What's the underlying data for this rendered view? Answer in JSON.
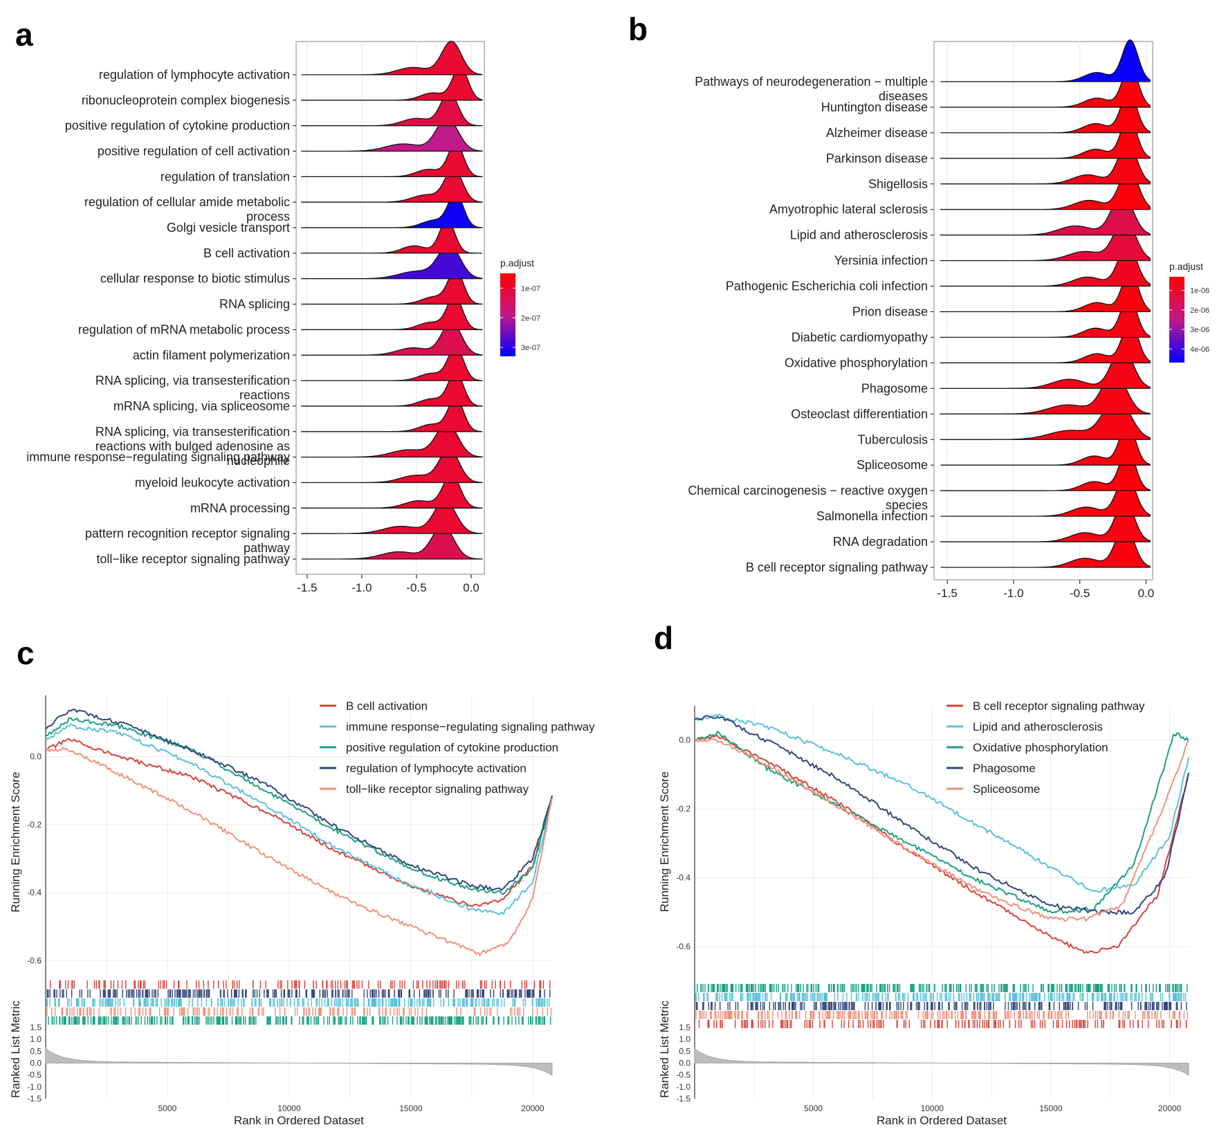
{
  "chart_data": [
    {
      "panel": "a",
      "type": "ridgeline",
      "xlim": [
        -1.6,
        0.12
      ],
      "x_ticks": [
        -1.5,
        -1.0,
        -0.5,
        0.0
      ],
      "x_tick_labels": [
        "-1.5",
        "-1.0",
        "-0.5",
        "0.0"
      ],
      "legend": {
        "title": "p.adjust",
        "labels": [
          "1e-07",
          "2e-07",
          "3e-07"
        ],
        "placement": "right",
        "scale_min": 5e-08,
        "scale_max": 3.3e-07
      },
      "categories": [
        "regulation of lymphocyte activation",
        "ribonucleoprotein complex biogenesis",
        "positive regulation of cytokine production",
        "positive regulation of cell activation",
        "regulation of translation",
        "regulation of cellular amide metabolic process",
        "Golgi vesicle transport",
        "B cell activation",
        "cellular response to biotic stimulus",
        "RNA splicing",
        "regulation of mRNA metabolic process",
        "actin filament polymerization",
        "RNA splicing, via transesterification reactions",
        "mRNA splicing, via spliceosome",
        "RNA splicing, via transesterification reactions with bulged adenosine as nucleophile",
        "immune response-regulating signaling pathway",
        "myeloid leukocyte activation",
        "mRNA processing",
        "pattern recognition receptor signaling pathway",
        "toll-like receptor signaling pathway"
      ],
      "label_lines": [
        [
          "regulation of lymphocyte activation"
        ],
        [
          "ribonucleoprotein complex biogenesis"
        ],
        [
          "positive regulation of cytokine production"
        ],
        [
          "positive regulation of cell activation"
        ],
        [
          "regulation of translation"
        ],
        [
          "regulation of cellular amide metabolic",
          "process"
        ],
        [
          "Golgi vesicle transport"
        ],
        [
          "B cell activation"
        ],
        [
          "cellular response to biotic stimulus"
        ],
        [
          "RNA splicing"
        ],
        [
          "regulation of mRNA metabolic process"
        ],
        [
          "actin filament polymerization"
        ],
        [
          "RNA splicing, via transesterification",
          "reactions"
        ],
        [
          "mRNA splicing, via spliceosome"
        ],
        [
          "RNA splicing, via transesterification",
          "reactions with bulged adenosine as",
          "nucleophile"
        ],
        [
          "immune response−regulating signaling pathway"
        ],
        [
          "myeloid leukocyte activation"
        ],
        [
          "mRNA processing"
        ],
        [
          "pattern recognition receptor signaling",
          "pathway"
        ],
        [
          "toll−like receptor signaling pathway"
        ]
      ],
      "peaks": [
        {
          "center": -0.18,
          "width": 0.09,
          "tail": 0.35,
          "p_adjust": 1e-07
        },
        {
          "center": -0.1,
          "width": 0.07,
          "tail": 0.25,
          "p_adjust": 1e-07
        },
        {
          "center": -0.2,
          "width": 0.08,
          "tail": 0.3,
          "p_adjust": 1.2e-07
        },
        {
          "center": -0.22,
          "width": 0.1,
          "tail": 0.4,
          "p_adjust": 1.9e-07
        },
        {
          "center": -0.14,
          "width": 0.07,
          "tail": 0.25,
          "p_adjust": 1e-07
        },
        {
          "center": -0.16,
          "width": 0.08,
          "tail": 0.25,
          "p_adjust": 1e-07
        },
        {
          "center": -0.14,
          "width": 0.07,
          "tail": 0.2,
          "p_adjust": 3.2e-07
        },
        {
          "center": -0.22,
          "width": 0.07,
          "tail": 0.3,
          "p_adjust": 1e-07
        },
        {
          "center": -0.2,
          "width": 0.1,
          "tail": 0.3,
          "p_adjust": 2.8e-07
        },
        {
          "center": -0.14,
          "width": 0.07,
          "tail": 0.2,
          "p_adjust": 1e-07
        },
        {
          "center": -0.15,
          "width": 0.07,
          "tail": 0.22,
          "p_adjust": 1e-07
        },
        {
          "center": -0.18,
          "width": 0.09,
          "tail": 0.35,
          "p_adjust": 1.3e-07
        },
        {
          "center": -0.14,
          "width": 0.07,
          "tail": 0.22,
          "p_adjust": 1e-07
        },
        {
          "center": -0.14,
          "width": 0.07,
          "tail": 0.22,
          "p_adjust": 1e-07
        },
        {
          "center": -0.14,
          "width": 0.07,
          "tail": 0.22,
          "p_adjust": 1e-07
        },
        {
          "center": -0.22,
          "width": 0.1,
          "tail": 0.35,
          "p_adjust": 1e-07
        },
        {
          "center": -0.2,
          "width": 0.09,
          "tail": 0.3,
          "p_adjust": 1e-07
        },
        {
          "center": -0.18,
          "width": 0.08,
          "tail": 0.3,
          "p_adjust": 1e-07
        },
        {
          "center": -0.24,
          "width": 0.1,
          "tail": 0.4,
          "p_adjust": 1e-07
        },
        {
          "center": -0.26,
          "width": 0.1,
          "tail": 0.4,
          "p_adjust": 1.3e-07
        }
      ]
    },
    {
      "panel": "b",
      "type": "ridgeline",
      "xlim": [
        -1.6,
        0.05
      ],
      "x_ticks": [
        -1.5,
        -1.0,
        -0.5,
        0.0
      ],
      "x_tick_labels": [
        "-1.5",
        "-1.0",
        "-0.5",
        "0.0"
      ],
      "legend": {
        "title": "p.adjust",
        "labels": [
          "1e-06",
          "2e-06",
          "3e-06",
          "4e-06"
        ],
        "placement": "right",
        "scale_min": 3e-07,
        "scale_max": 4.7e-06
      },
      "categories": [
        "Pathways of neurodegeneration - multiple diseases",
        "Huntington disease",
        "Alzheimer disease",
        "Parkinson disease",
        "Shigellosis",
        "Amyotrophic lateral sclerosis",
        "Lipid and atherosclerosis",
        "Yersinia infection",
        "Pathogenic Escherichia coli infection",
        "Prion disease",
        "Diabetic cardiomyopathy",
        "Oxidative phosphorylation",
        "Phagosome",
        "Osteoclast differentiation",
        "Tuberculosis",
        "Spliceosome",
        "Chemical carcinogenesis - reactive oxygen species",
        "Salmonella infection",
        "RNA degradation",
        "B cell receptor signaling pathway"
      ],
      "label_lines": [
        [
          "Pathways of neurodegeneration − multiple",
          "diseases"
        ],
        [
          "Huntington disease"
        ],
        [
          "Alzheimer disease"
        ],
        [
          "Parkinson disease"
        ],
        [
          "Shigellosis"
        ],
        [
          "Amyotrophic lateral sclerosis"
        ],
        [
          "Lipid and atherosclerosis"
        ],
        [
          "Yersinia infection"
        ],
        [
          "Pathogenic Escherichia coli infection"
        ],
        [
          "Prion disease"
        ],
        [
          "Diabetic cardiomyopathy"
        ],
        [
          "Oxidative phosphorylation"
        ],
        [
          "Phagosome"
        ],
        [
          "Osteoclast differentiation"
        ],
        [
          "Tuberculosis"
        ],
        [
          "Spliceosome"
        ],
        [
          "Chemical carcinogenesis − reactive oxygen",
          "species"
        ],
        [
          "Salmonella infection"
        ],
        [
          "RNA degradation"
        ],
        [
          "B cell receptor signaling pathway"
        ]
      ],
      "peaks": [
        {
          "center": -0.12,
          "width": 0.06,
          "tail": 0.25,
          "p_adjust": 4.6e-06
        },
        {
          "center": -0.12,
          "width": 0.06,
          "tail": 0.25,
          "p_adjust": 5e-07
        },
        {
          "center": -0.13,
          "width": 0.06,
          "tail": 0.25,
          "p_adjust": 5e-07
        },
        {
          "center": -0.13,
          "width": 0.06,
          "tail": 0.25,
          "p_adjust": 5e-07
        },
        {
          "center": -0.14,
          "width": 0.07,
          "tail": 0.3,
          "p_adjust": 6e-07
        },
        {
          "center": -0.13,
          "width": 0.07,
          "tail": 0.3,
          "p_adjust": 5e-07
        },
        {
          "center": -0.18,
          "width": 0.08,
          "tail": 0.35,
          "p_adjust": 1.5e-06
        },
        {
          "center": -0.16,
          "width": 0.08,
          "tail": 0.3,
          "p_adjust": 1.2e-06
        },
        {
          "center": -0.14,
          "width": 0.07,
          "tail": 0.3,
          "p_adjust": 8e-07
        },
        {
          "center": -0.12,
          "width": 0.06,
          "tail": 0.25,
          "p_adjust": 5e-07
        },
        {
          "center": -0.13,
          "width": 0.06,
          "tail": 0.25,
          "p_adjust": 6e-07
        },
        {
          "center": -0.12,
          "width": 0.06,
          "tail": 0.25,
          "p_adjust": 6e-07
        },
        {
          "center": -0.18,
          "width": 0.08,
          "tail": 0.4,
          "p_adjust": 6e-07
        },
        {
          "center": -0.24,
          "width": 0.09,
          "tail": 0.35,
          "p_adjust": 6e-07
        },
        {
          "center": -0.22,
          "width": 0.1,
          "tail": 0.35,
          "p_adjust": 6e-07
        },
        {
          "center": -0.14,
          "width": 0.06,
          "tail": 0.25,
          "p_adjust": 5e-07
        },
        {
          "center": -0.14,
          "width": 0.06,
          "tail": 0.25,
          "p_adjust": 5e-07
        },
        {
          "center": -0.15,
          "width": 0.07,
          "tail": 0.3,
          "p_adjust": 5e-07
        },
        {
          "center": -0.16,
          "width": 0.07,
          "tail": 0.3,
          "p_adjust": 6e-07
        },
        {
          "center": -0.16,
          "width": 0.07,
          "tail": 0.3,
          "p_adjust": 5e-07
        }
      ]
    },
    {
      "panel": "c",
      "type": "line",
      "ylabel": "Running Enrichment Score",
      "xlabel": "Rank in Ordered Dataset",
      "ylim": [
        -0.65,
        0.18
      ],
      "y_ticks": [
        0.0,
        -0.2,
        -0.4,
        -0.6
      ],
      "y_tick_labels": [
        "0.0",
        "-0.2",
        "-0.4",
        "-0.6"
      ],
      "xlim": [
        0,
        20800
      ],
      "x_ticks": [
        5000,
        10000,
        15000,
        20000
      ],
      "x_tick_labels": [
        "5000",
        "10000",
        "15000",
        "20000"
      ],
      "metric_ylabel": "Ranked List Metric",
      "metric_ticks": [
        1.5,
        1.0,
        0.5,
        0.0,
        -0.5,
        -1.0,
        -1.5
      ],
      "metric_tick_labels": [
        "1.5",
        "1.0",
        "0.5",
        "0.0",
        "-0.5",
        "-1.0",
        "-1.5"
      ],
      "legend_placement": "top-right",
      "series": [
        {
          "name": "B cell activation",
          "color": "#d7433b",
          "x": [
            0,
            1000,
            3000,
            6000,
            9000,
            12000,
            15000,
            17500,
            18800,
            20000,
            20800
          ],
          "y": [
            0.02,
            0.05,
            0.0,
            -0.06,
            -0.16,
            -0.28,
            -0.38,
            -0.44,
            -0.42,
            -0.32,
            -0.12
          ]
        },
        {
          "name": "immune response−regulating signaling pathway",
          "color": "#5bc0d9",
          "x": [
            0,
            1000,
            3000,
            6000,
            9000,
            12000,
            15000,
            17500,
            18800,
            20000,
            20800
          ],
          "y": [
            0.05,
            0.09,
            0.07,
            -0.02,
            -0.14,
            -0.27,
            -0.38,
            -0.45,
            -0.46,
            -0.37,
            -0.12
          ]
        },
        {
          "name": "positive regulation of cytokine production",
          "color": "#1aa083",
          "x": [
            0,
            1000,
            3000,
            6000,
            9000,
            12000,
            15000,
            17500,
            18800,
            20000,
            20800
          ],
          "y": [
            0.06,
            0.11,
            0.09,
            0.02,
            -0.1,
            -0.22,
            -0.33,
            -0.39,
            -0.4,
            -0.33,
            -0.12
          ]
        },
        {
          "name": "regulation of lymphocyte activation",
          "color": "#34477a",
          "x": [
            0,
            1000,
            3000,
            6000,
            9000,
            12000,
            15000,
            17500,
            18800,
            20000,
            20800
          ],
          "y": [
            0.08,
            0.14,
            0.1,
            0.02,
            -0.08,
            -0.21,
            -0.32,
            -0.38,
            -0.39,
            -0.3,
            -0.12
          ]
        },
        {
          "name": "toll−like receptor signaling pathway",
          "color": "#f0917a",
          "x": [
            0,
            1000,
            3000,
            6000,
            9000,
            12000,
            15000,
            17800,
            19000,
            20000,
            20800
          ],
          "y": [
            0.02,
            0.02,
            -0.05,
            -0.16,
            -0.29,
            -0.41,
            -0.5,
            -0.58,
            -0.55,
            -0.42,
            -0.12
          ]
        }
      ]
    },
    {
      "panel": "d",
      "type": "line",
      "ylabel": "Running Enrichment Score",
      "xlabel": "Rank in Ordered Dataset",
      "ylim": [
        -0.66,
        0.1
      ],
      "y_ticks": [
        0.0,
        -0.2,
        -0.4,
        -0.6
      ],
      "y_tick_labels": [
        "0.0",
        "-0.2",
        "-0.4",
        "-0.6"
      ],
      "xlim": [
        0,
        20800
      ],
      "x_ticks": [
        5000,
        10000,
        15000,
        20000
      ],
      "x_tick_labels": [
        "5000",
        "10000",
        "15000",
        "20000"
      ],
      "metric_ylabel": "Ranked List Metric",
      "metric_ticks": [
        1.5,
        1.0,
        0.5,
        0.0,
        -0.5,
        -1.0,
        -1.5
      ],
      "metric_tick_labels": [
        "1.5",
        "1.0",
        "0.5",
        "0.0",
        "-0.5",
        "-1.0",
        "-1.5"
      ],
      "legend_placement": "top-right",
      "series": [
        {
          "name": "B cell receptor signaling pathway",
          "color": "#d7433b",
          "x": [
            0,
            1000,
            3000,
            6000,
            9000,
            12000,
            15000,
            16500,
            17800,
            19500,
            20800
          ],
          "y": [
            0.0,
            0.01,
            -0.06,
            -0.18,
            -0.32,
            -0.45,
            -0.57,
            -0.62,
            -0.6,
            -0.45,
            -0.1
          ]
        },
        {
          "name": "Lipid and atherosclerosis",
          "color": "#5bc0d9",
          "x": [
            0,
            1000,
            3000,
            6000,
            9000,
            12000,
            15000,
            16800,
            18500,
            20000,
            20800
          ],
          "y": [
            0.06,
            0.07,
            0.04,
            -0.04,
            -0.13,
            -0.25,
            -0.37,
            -0.44,
            -0.42,
            -0.28,
            -0.05
          ]
        },
        {
          "name": "Oxidative phosphorylation",
          "color": "#1aa083",
          "x": [
            0,
            1000,
            3000,
            6000,
            9000,
            12000,
            15000,
            16800,
            18500,
            20200,
            20800
          ],
          "y": [
            0.0,
            0.02,
            -0.08,
            -0.19,
            -0.3,
            -0.41,
            -0.5,
            -0.49,
            -0.36,
            0.02,
            0.0
          ]
        },
        {
          "name": "Phagosome",
          "color": "#34477a",
          "x": [
            0,
            1000,
            3000,
            6000,
            9000,
            12000,
            15000,
            17000,
            18500,
            19800,
            20800
          ],
          "y": [
            0.06,
            0.07,
            0.0,
            -0.11,
            -0.25,
            -0.38,
            -0.48,
            -0.5,
            -0.5,
            -0.4,
            -0.1
          ]
        },
        {
          "name": "Spliceosome",
          "color": "#f0917a",
          "x": [
            0,
            1000,
            3000,
            6000,
            9000,
            12000,
            15000,
            16500,
            18000,
            20000,
            20800
          ],
          "y": [
            0.0,
            0.0,
            -0.07,
            -0.19,
            -0.32,
            -0.44,
            -0.52,
            -0.52,
            -0.48,
            -0.15,
            0.0
          ]
        }
      ]
    }
  ],
  "panels": {
    "a": {
      "letter": "a"
    },
    "b": {
      "letter": "b"
    },
    "c": {
      "letter": "c"
    },
    "d": {
      "letter": "d"
    }
  },
  "colors": {
    "high": "#ff0000",
    "mid": "#c01a8a",
    "low": "#0000ff",
    "grid": "#ebebeb"
  }
}
